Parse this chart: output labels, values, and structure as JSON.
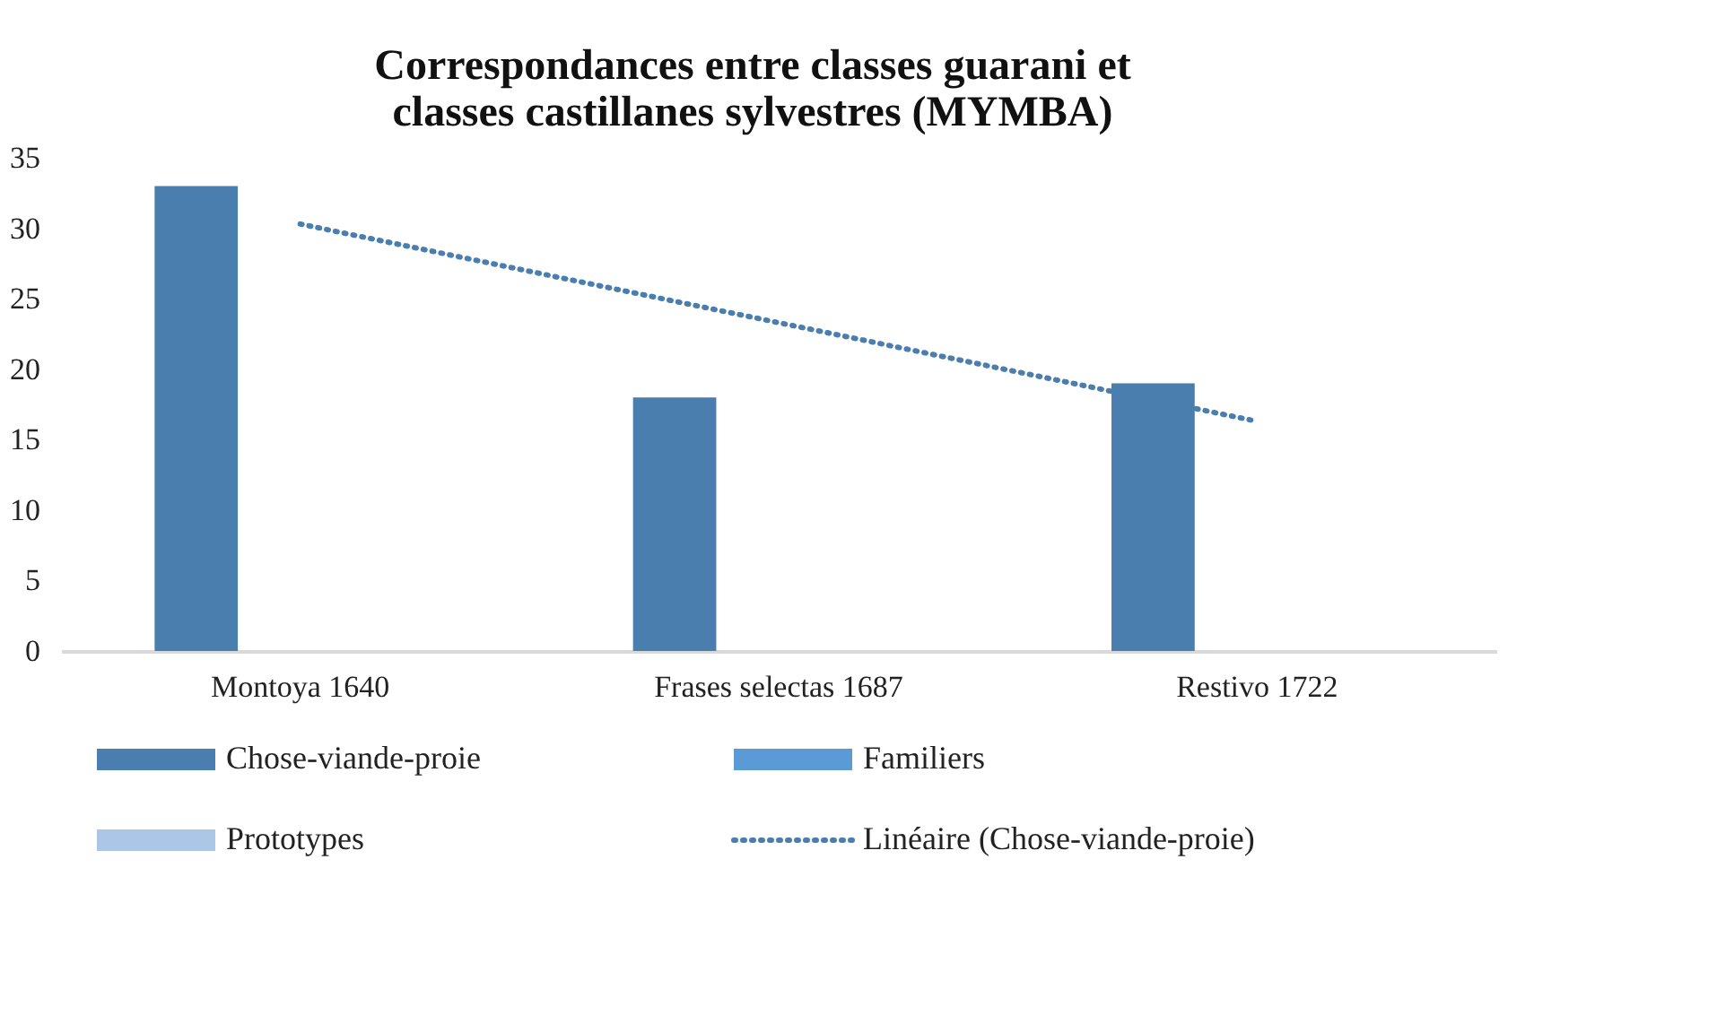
{
  "chart_data": {
    "type": "bar",
    "title": "Correspondances entre classes guarani et\nclasses castillanes sylvestres (MYMBA)",
    "categories": [
      "Montoya 1640",
      "Frases selectas 1687",
      "Restivo 1722"
    ],
    "series": [
      {
        "name": "Chose-viande-proie",
        "color": "#4a7eae",
        "values": [
          33,
          18,
          19
        ]
      },
      {
        "name": "Familiers",
        "color": "#5b9bd5",
        "values": [
          0,
          0,
          0
        ]
      },
      {
        "name": "Prototypes",
        "color": "#abc6e6",
        "values": [
          0,
          0,
          0
        ]
      },
      {
        "name": "Linéaire (Chose-viande-proie)",
        "type": "line",
        "line_style": "dotted",
        "color": "#4a7eae",
        "values": [
          30.3,
          23.3,
          16.3
        ]
      }
    ],
    "ylim": [
      0,
      35
    ],
    "yticks": [
      0,
      5,
      10,
      15,
      20,
      25,
      30,
      35
    ],
    "grid": false,
    "legend": "bottom"
  }
}
